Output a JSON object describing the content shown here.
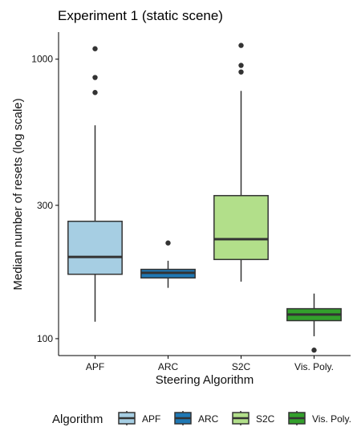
{
  "chart_data": {
    "type": "boxplot",
    "title": "Experiment 1 (static scene)",
    "xlabel": "Steering Algorithm",
    "ylabel": "Median number of resets (log scale)",
    "y_scale": "log",
    "ylim": [
      87,
      1250
    ],
    "y_ticks": [
      100,
      300,
      1000
    ],
    "y_tick_labels": [
      "100",
      "300",
      "1000"
    ],
    "grid": false,
    "legend": {
      "title": "Algorithm",
      "position": "bottom"
    },
    "categories": [
      "APF",
      "ARC",
      "S2C",
      "Vis. Poly."
    ],
    "series": [
      {
        "name": "APF",
        "color": "#a6cee3",
        "whisker_low": 115,
        "q1": 170,
        "median": 196,
        "q3": 263,
        "whisker_high": 580,
        "outliers": [
          760,
          860,
          1090
        ]
      },
      {
        "name": "ARC",
        "color": "#1f78b4",
        "whisker_low": 152,
        "q1": 165,
        "median": 172,
        "q3": 177,
        "whisker_high": 190,
        "outliers": [
          220
        ]
      },
      {
        "name": "S2C",
        "color": "#b2df8a",
        "whisker_low": 160,
        "q1": 192,
        "median": 227,
        "q3": 325,
        "whisker_high": 770,
        "outliers": [
          900,
          950,
          1120
        ]
      },
      {
        "name": "Vis. Poly.",
        "color": "#33a02c",
        "whisker_low": 102,
        "q1": 116,
        "median": 122,
        "q3": 128,
        "whisker_high": 145,
        "outliers": [
          91
        ]
      }
    ]
  }
}
